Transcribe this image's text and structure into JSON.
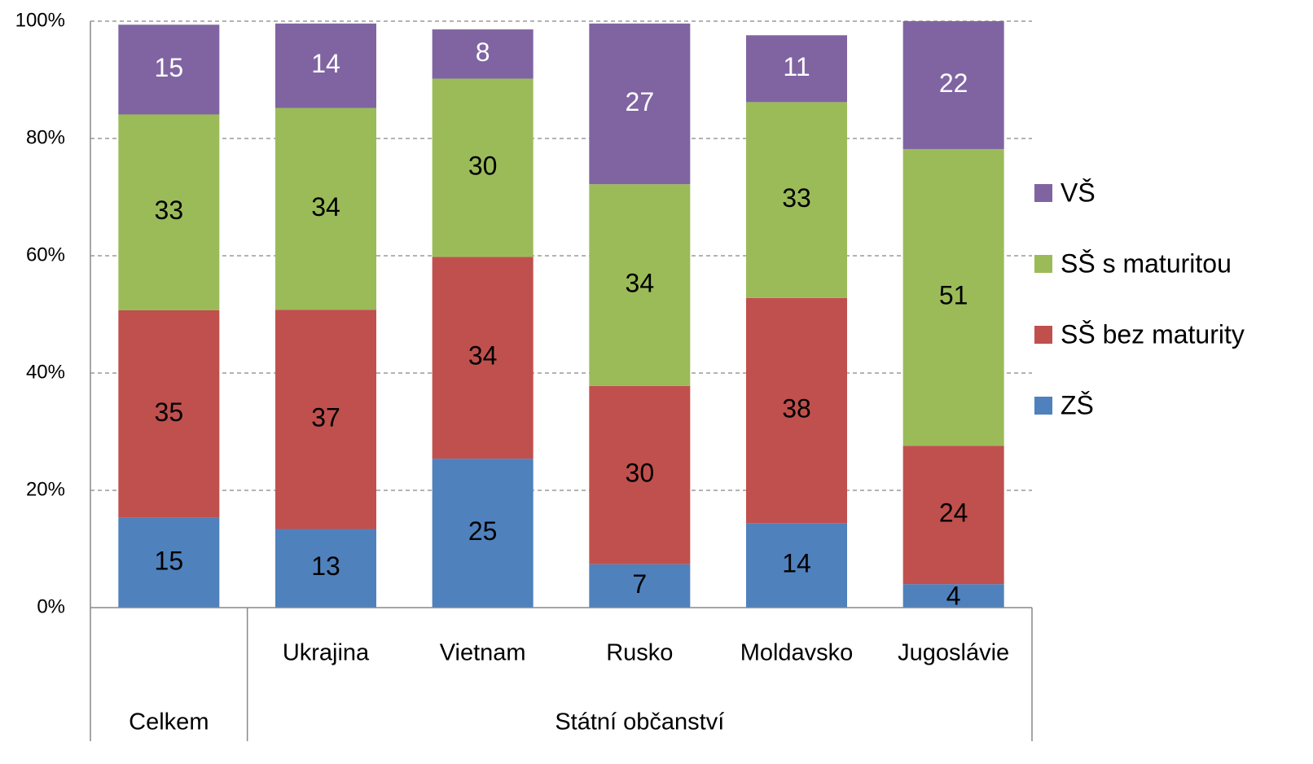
{
  "chart_data": {
    "type": "stacked_bar_100",
    "categories": [
      null,
      "Ukrajina",
      "Vietnam",
      "Rusko",
      "Moldavsko",
      "Jugoslávie"
    ],
    "groups": [
      {
        "label": "Celkem",
        "span": 1
      },
      {
        "label": "Státní občanství",
        "span": 5
      }
    ],
    "series": [
      {
        "name": "ZŠ",
        "color": "#4f81bd",
        "values": [
          15.3,
          13.4,
          25.4,
          7.4,
          14.4,
          4.0
        ],
        "value_labels": [
          "15",
          "13",
          "25",
          "7",
          "14",
          "4"
        ]
      },
      {
        "name": "SŠ bez maturity",
        "color": "#c0504d",
        "values": [
          35.4,
          37.4,
          34.4,
          30.4,
          38.4,
          23.6
        ],
        "value_labels": [
          "35",
          "37",
          "34",
          "30",
          "38",
          "24"
        ]
      },
      {
        "name": "SŠ s maturitou",
        "color": "#9bbb59",
        "values": [
          33.4,
          34.4,
          30.4,
          34.4,
          33.4,
          50.6
        ],
        "value_labels": [
          "33",
          "34",
          "30",
          "34",
          "33",
          "51"
        ]
      },
      {
        "name": "VŠ",
        "color": "#8064a2",
        "values": [
          15.3,
          14.4,
          8.4,
          27.4,
          11.4,
          21.8
        ],
        "value_labels": [
          "15",
          "14",
          "8",
          "27",
          "11",
          "22"
        ]
      }
    ],
    "ylim": [
      0,
      100
    ],
    "yticks": [
      {
        "value": 0,
        "label": "0%"
      },
      {
        "value": 20,
        "label": "20%"
      },
      {
        "value": 40,
        "label": "40%"
      },
      {
        "value": 60,
        "label": "60%"
      },
      {
        "value": 80,
        "label": "80%"
      },
      {
        "value": 100,
        "label": "100%"
      }
    ],
    "grid": true,
    "legend": "right"
  }
}
